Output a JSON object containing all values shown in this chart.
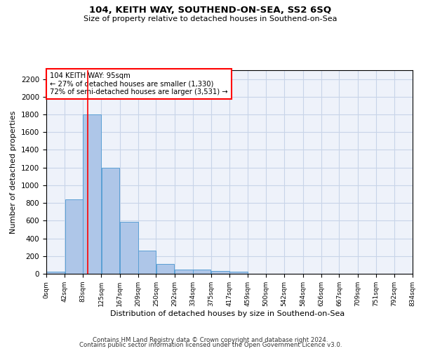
{
  "title": "104, KEITH WAY, SOUTHEND-ON-SEA, SS2 6SQ",
  "subtitle": "Size of property relative to detached houses in Southend-on-Sea",
  "xlabel": "Distribution of detached houses by size in Southend-on-Sea",
  "ylabel": "Number of detached properties",
  "footer_line1": "Contains HM Land Registry data © Crown copyright and database right 2024.",
  "footer_line2": "Contains public sector information licensed under the Open Government Licence v3.0.",
  "bar_edges": [
    0,
    42,
    83,
    125,
    167,
    209,
    250,
    292,
    334,
    375,
    417,
    459,
    500,
    542,
    584,
    626,
    667,
    709,
    751,
    792,
    834
  ],
  "bar_heights": [
    25,
    840,
    1800,
    1200,
    590,
    260,
    115,
    50,
    45,
    32,
    20,
    0,
    0,
    0,
    0,
    0,
    0,
    0,
    0,
    0
  ],
  "bar_color": "#aec6e8",
  "bar_edgecolor": "#5a9fd4",
  "vline_x": 95,
  "ylim": [
    0,
    2300
  ],
  "yticks": [
    0,
    200,
    400,
    600,
    800,
    1000,
    1200,
    1400,
    1600,
    1800,
    2000,
    2200
  ],
  "annotation_title": "104 KEITH WAY: 95sqm",
  "annotation_line1": "← 27% of detached houses are smaller (1,330)",
  "annotation_line2": "72% of semi-detached houses are larger (3,531) →",
  "bg_color": "#eef2fa",
  "grid_color": "#c8d4e8",
  "tick_labels": [
    "0sqm",
    "42sqm",
    "83sqm",
    "125sqm",
    "167sqm",
    "209sqm",
    "250sqm",
    "292sqm",
    "334sqm",
    "375sqm",
    "417sqm",
    "459sqm",
    "500sqm",
    "542sqm",
    "584sqm",
    "626sqm",
    "667sqm",
    "709sqm",
    "751sqm",
    "792sqm",
    "834sqm"
  ]
}
